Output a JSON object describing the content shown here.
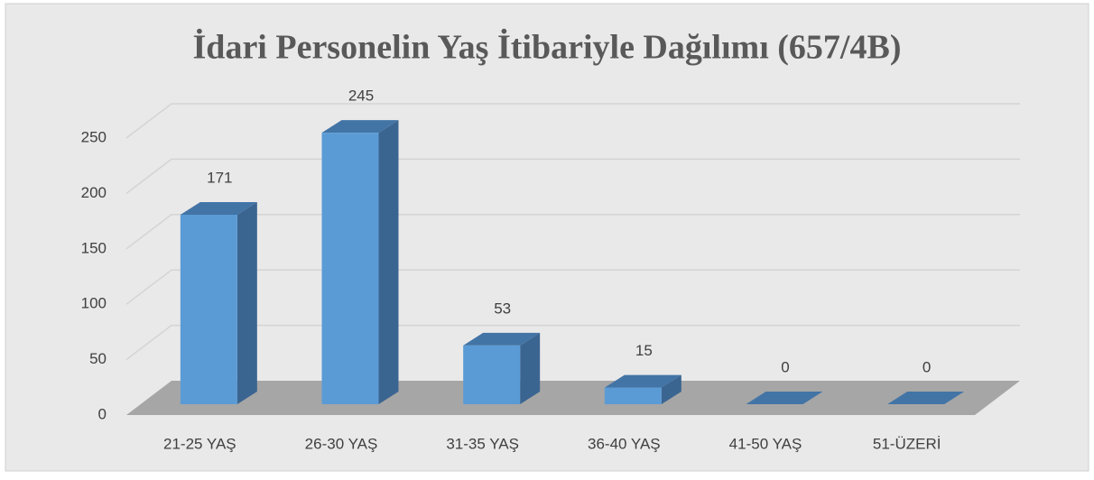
{
  "chart_data": {
    "type": "bar3d",
    "title": "İdari Personelin Yaş İtibariyle Dağılımı (657/4B)",
    "categories": [
      "21-25 YAŞ",
      "26-30 YAŞ",
      "31-35 YAŞ",
      "36-40 YAŞ",
      "41-50 YAŞ",
      "51-ÜZERİ"
    ],
    "values": [
      171,
      245,
      53,
      15,
      0,
      0
    ],
    "color": "#5b9bd5",
    "ylim": [
      0,
      250
    ],
    "yticks": [
      0,
      50,
      100,
      150,
      200,
      250
    ],
    "grid": true
  }
}
